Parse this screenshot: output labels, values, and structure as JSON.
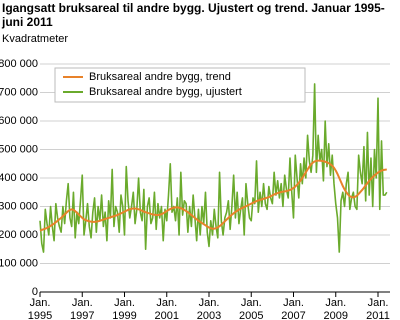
{
  "chart_data": {
    "type": "line",
    "title": "Igangsatt bruksareal til andre bygg. Ujustert og trend. Januar 1995-juni 2011",
    "y_label": "Kvadratmeter",
    "categories": [
      "Jan. 1995",
      null,
      null,
      null,
      null,
      null,
      null,
      null,
      null,
      null,
      null,
      null,
      null,
      null,
      null,
      null,
      null,
      null,
      null,
      null,
      null,
      null,
      null,
      null,
      "Jan. 1997",
      null,
      null,
      null,
      null,
      null,
      null,
      null,
      null,
      null,
      null,
      null,
      null,
      null,
      null,
      null,
      null,
      null,
      null,
      null,
      null,
      null,
      null,
      null,
      "Jan. 1999",
      null,
      null,
      null,
      null,
      null,
      null,
      null,
      null,
      null,
      null,
      null,
      null,
      null,
      null,
      null,
      null,
      null,
      null,
      null,
      null,
      null,
      null,
      null,
      "Jan. 2001",
      null,
      null,
      null,
      null,
      null,
      null,
      null,
      null,
      null,
      null,
      null,
      null,
      null,
      null,
      null,
      null,
      null,
      null,
      null,
      null,
      null,
      null,
      null,
      "Jan. 2003",
      null,
      null,
      null,
      null,
      null,
      null,
      null,
      null,
      null,
      null,
      null,
      null,
      null,
      null,
      null,
      null,
      null,
      null,
      null,
      null,
      null,
      null,
      null,
      "Jan. 2005",
      null,
      null,
      null,
      null,
      null,
      null,
      null,
      null,
      null,
      null,
      null,
      null,
      null,
      null,
      null,
      null,
      null,
      null,
      null,
      null,
      null,
      null,
      null,
      "Jan. 2007",
      null,
      null,
      null,
      null,
      null,
      null,
      null,
      null,
      null,
      null,
      null,
      null,
      null,
      null,
      null,
      null,
      null,
      null,
      null,
      null,
      null,
      null,
      null,
      "Jan. 2009",
      null,
      null,
      null,
      null,
      null,
      null,
      null,
      null,
      null,
      null,
      null,
      null,
      null,
      null,
      null,
      null,
      null,
      null,
      null,
      null,
      null,
      null,
      null,
      "Jan. 2011",
      null,
      null,
      null,
      null,
      null
    ],
    "series": [
      {
        "name": "Bruksareal andre bygg, trend",
        "color": "#e8822a",
        "values": [
          215000,
          218000,
          220000,
          222000,
          225000,
          228000,
          232000,
          236000,
          240000,
          245000,
          250000,
          255000,
          260000,
          266000,
          272000,
          278000,
          284000,
          288000,
          290000,
          288000,
          284000,
          278000,
          272000,
          266000,
          260000,
          255000,
          252000,
          250000,
          248000,
          247000,
          246000,
          246000,
          247000,
          248000,
          250000,
          252000,
          254000,
          256000,
          258000,
          260000,
          262000,
          264000,
          266000,
          268000,
          270000,
          273000,
          276000,
          279000,
          282000,
          285000,
          288000,
          290000,
          292000,
          293000,
          293000,
          292000,
          290000,
          288000,
          285000,
          282000,
          280000,
          278000,
          276000,
          274000,
          272000,
          271000,
          270000,
          270000,
          271000,
          273000,
          276000,
          280000,
          284000,
          288000,
          291000,
          294000,
          296000,
          297000,
          297000,
          296000,
          294000,
          291000,
          288000,
          284000,
          280000,
          275000,
          270000,
          265000,
          260000,
          255000,
          250000,
          246000,
          242000,
          238000,
          234000,
          230000,
          226000,
          224000,
          222000,
          222000,
          224000,
          227000,
          231000,
          236000,
          242000,
          248000,
          254000,
          260000,
          266000,
          271000,
          276000,
          281000,
          285000,
          289000,
          292000,
          295000,
          298000,
          301000,
          304000,
          307000,
          310000,
          313000,
          316000,
          319000,
          321000,
          323000,
          325000,
          327000,
          329000,
          331000,
          333000,
          336000,
          339000,
          342000,
          345000,
          347000,
          349000,
          351000,
          352000,
          353000,
          354000,
          356000,
          358000,
          361000,
          365000,
          370000,
          376000,
          383000,
          391000,
          400000,
          410000,
          420000,
          430000,
          440000,
          448000,
          454000,
          458000,
          460000,
          461000,
          461000,
          460000,
          459000,
          457000,
          455000,
          452000,
          448000,
          443000,
          436000,
          426000,
          414000,
          400000,
          386000,
          372000,
          360000,
          350000,
          342000,
          336000,
          333000,
          332000,
          334000,
          338000,
          344000,
          351000,
          358000,
          366000,
          374000,
          382000,
          390000,
          397000,
          403000,
          409000,
          414000,
          419000,
          423000,
          426000,
          428000,
          429000,
          430000
        ]
      },
      {
        "name": "Bruksareal andre bygg, ujustert",
        "color": "#6aaa2c",
        "values": [
          250000,
          170000,
          140000,
          290000,
          240000,
          200000,
          300000,
          230000,
          180000,
          310000,
          260000,
          230000,
          210000,
          300000,
          240000,
          320000,
          380000,
          260000,
          230000,
          350000,
          190000,
          280000,
          240000,
          320000,
          410000,
          200000,
          250000,
          310000,
          230000,
          190000,
          280000,
          330000,
          210000,
          300000,
          250000,
          340000,
          230000,
          280000,
          180000,
          320000,
          260000,
          430000,
          230000,
          300000,
          280000,
          210000,
          340000,
          300000,
          200000,
          440000,
          320000,
          260000,
          300000,
          350000,
          240000,
          290000,
          400000,
          280000,
          250000,
          360000,
          150000,
          300000,
          330000,
          240000,
          260000,
          350000,
          220000,
          310000,
          260000,
          300000,
          180000,
          290000,
          250000,
          340000,
          450000,
          280000,
          300000,
          250000,
          330000,
          200000,
          420000,
          270000,
          320000,
          310000,
          210000,
          300000,
          230000,
          340000,
          260000,
          180000,
          290000,
          200000,
          300000,
          240000,
          350000,
          210000,
          160000,
          250000,
          200000,
          290000,
          230000,
          190000,
          420000,
          250000,
          200000,
          260000,
          280000,
          320000,
          220000,
          300000,
          410000,
          260000,
          350000,
          240000,
          290000,
          330000,
          200000,
          380000,
          310000,
          260000,
          250000,
          330000,
          310000,
          460000,
          280000,
          350000,
          300000,
          380000,
          310000,
          290000,
          370000,
          330000,
          310000,
          420000,
          340000,
          390000,
          330000,
          380000,
          300000,
          410000,
          360000,
          330000,
          470000,
          350000,
          260000,
          480000,
          400000,
          330000,
          450000,
          380000,
          470000,
          400000,
          550000,
          460000,
          420000,
          480000,
          730000,
          420000,
          550000,
          460000,
          500000,
          390000,
          600000,
          440000,
          520000,
          410000,
          480000,
          380000,
          310000,
          260000,
          140000,
          320000,
          350000,
          300000,
          380000,
          420000,
          290000,
          330000,
          350000,
          300000,
          290000,
          480000,
          420000,
          380000,
          510000,
          320000,
          560000,
          340000,
          470000,
          300000,
          500000,
          400000,
          680000,
          290000,
          530000,
          340000,
          340000,
          350000
        ]
      }
    ],
    "ylim": [
      0,
      800000
    ],
    "yticks": [
      0,
      {
        "value": 100000,
        "label": "100 000"
      },
      {
        "value": 200000,
        "label": "200 000"
      },
      {
        "value": 300000,
        "label": "300 000"
      },
      {
        "value": 400000,
        "label": "400 000"
      },
      {
        "value": 500000,
        "label": "500 000"
      },
      {
        "value": 600000,
        "label": "600 000"
      },
      {
        "value": 700000,
        "label": "700 000"
      },
      {
        "value": 800000,
        "label": "800 000"
      }
    ],
    "grid": true,
    "legend": "top-left"
  }
}
